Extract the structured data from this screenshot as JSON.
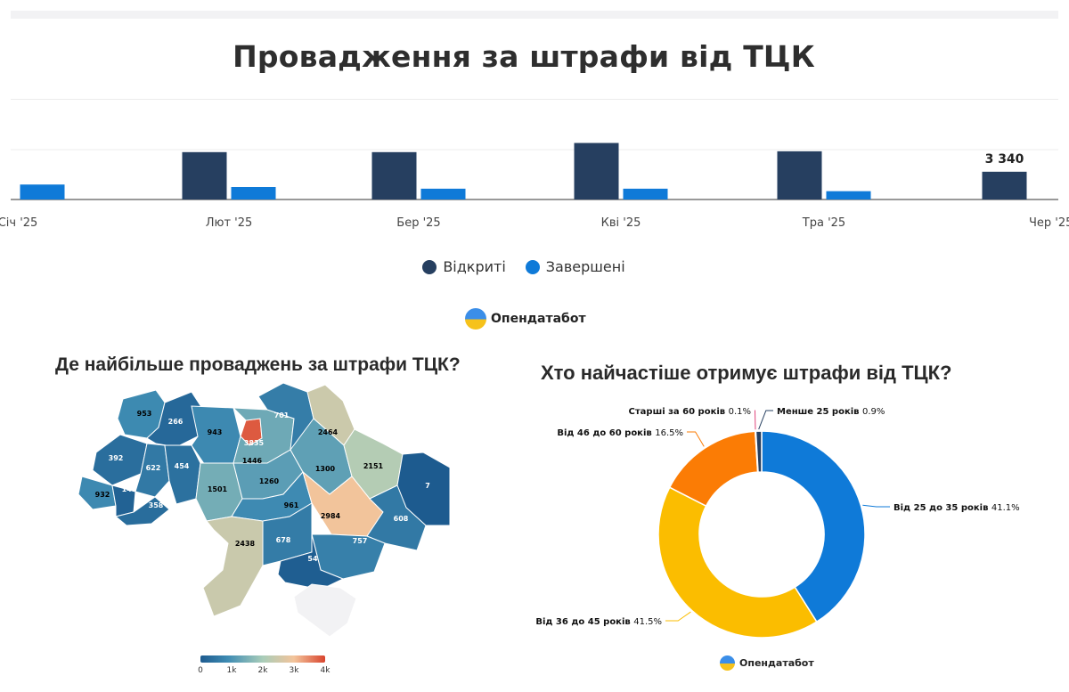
{
  "title": "Провадження за штрафи від ТЦК",
  "chart_data": [
    {
      "type": "bar",
      "categories": [
        "Січ '25",
        "Лют '25",
        "Бер '25",
        "Кві '25",
        "Тра '25",
        "Чер '25"
      ],
      "series": [
        {
          "name": "Відкриті",
          "values": [
            null,
            5700,
            5700,
            6800,
            5800,
            3340
          ]
        },
        {
          "name": "Завершені",
          "values": [
            1800,
            1500,
            1300,
            1300,
            1000,
            null
          ]
        }
      ],
      "data_labels": [
        {
          "series": 0,
          "index": 5,
          "text": "3 340"
        }
      ],
      "colors": [
        "#263f60",
        "#0f7ad8"
      ],
      "legend": "bottom-center",
      "ylim": [
        0,
        9000
      ],
      "grid": true
    },
    {
      "type": "heatmap",
      "title": "Де найбільше проваджень за штрафи ТЦК?",
      "regions": [
        {
          "name": "Волинська",
          "value": 953
        },
        {
          "name": "Рівненська",
          "value": 266
        },
        {
          "name": "Житомирська",
          "value": 943
        },
        {
          "name": "Київ",
          "value": 3835
        },
        {
          "name": "Київська",
          "value": 1446
        },
        {
          "name": "Чернігівська",
          "value": 701
        },
        {
          "name": "Сумська",
          "value": 2464
        },
        {
          "name": "Львівська",
          "value": 392
        },
        {
          "name": "Тернопільська",
          "value": 622
        },
        {
          "name": "Хмельницька",
          "value": 454
        },
        {
          "name": "Закарпатська",
          "value": 932
        },
        {
          "name": "Івано-Франківська",
          "value": 147
        },
        {
          "name": "Чернівецька",
          "value": 358
        },
        {
          "name": "Вінницька",
          "value": 1501
        },
        {
          "name": "Черкаська",
          "value": 1260
        },
        {
          "name": "Полтавська",
          "value": 1300
        },
        {
          "name": "Харківська",
          "value": 2151
        },
        {
          "name": "Луганська",
          "value": 7
        },
        {
          "name": "Кіровоградська",
          "value": 961
        },
        {
          "name": "Дніпропетровська",
          "value": 2984
        },
        {
          "name": "Донецька",
          "value": 608
        },
        {
          "name": "Одеська",
          "value": 2438
        },
        {
          "name": "Миколаївська",
          "value": 678
        },
        {
          "name": "Запорізька",
          "value": 757
        },
        {
          "name": "Херсонська",
          "value": 54
        },
        {
          "name": "Крим",
          "value": null
        }
      ],
      "scale": {
        "ticks": [
          "0",
          "1k",
          "2k",
          "3k",
          "4k"
        ],
        "range": [
          0,
          4000
        ]
      }
    },
    {
      "type": "pie",
      "title": "Хто найчастіше отримує штрафи від ТЦК?",
      "slices": [
        {
          "label": "Від 25 до 35 років",
          "value": 41.1,
          "pct": "41.1%",
          "color": "#0f7ad8"
        },
        {
          "label": "Від 36 до 45 років",
          "value": 41.5,
          "pct": "41.5%",
          "color": "#fbbd00"
        },
        {
          "label": "Від 46 до 60 років",
          "value": 16.5,
          "pct": "16.5%",
          "color": "#fb7c05"
        },
        {
          "label": "Старші за 60 років",
          "value": 0.1,
          "pct": "0.1%",
          "color": "#e0457b"
        },
        {
          "label": "Менше 25 років",
          "value": 0.9,
          "pct": "0.9%",
          "color": "#263f60"
        }
      ]
    }
  ],
  "brand": "Опендатабот",
  "colors": {
    "title": "#2e2e2e",
    "open": "#263f60",
    "closed": "#0f7ad8"
  }
}
